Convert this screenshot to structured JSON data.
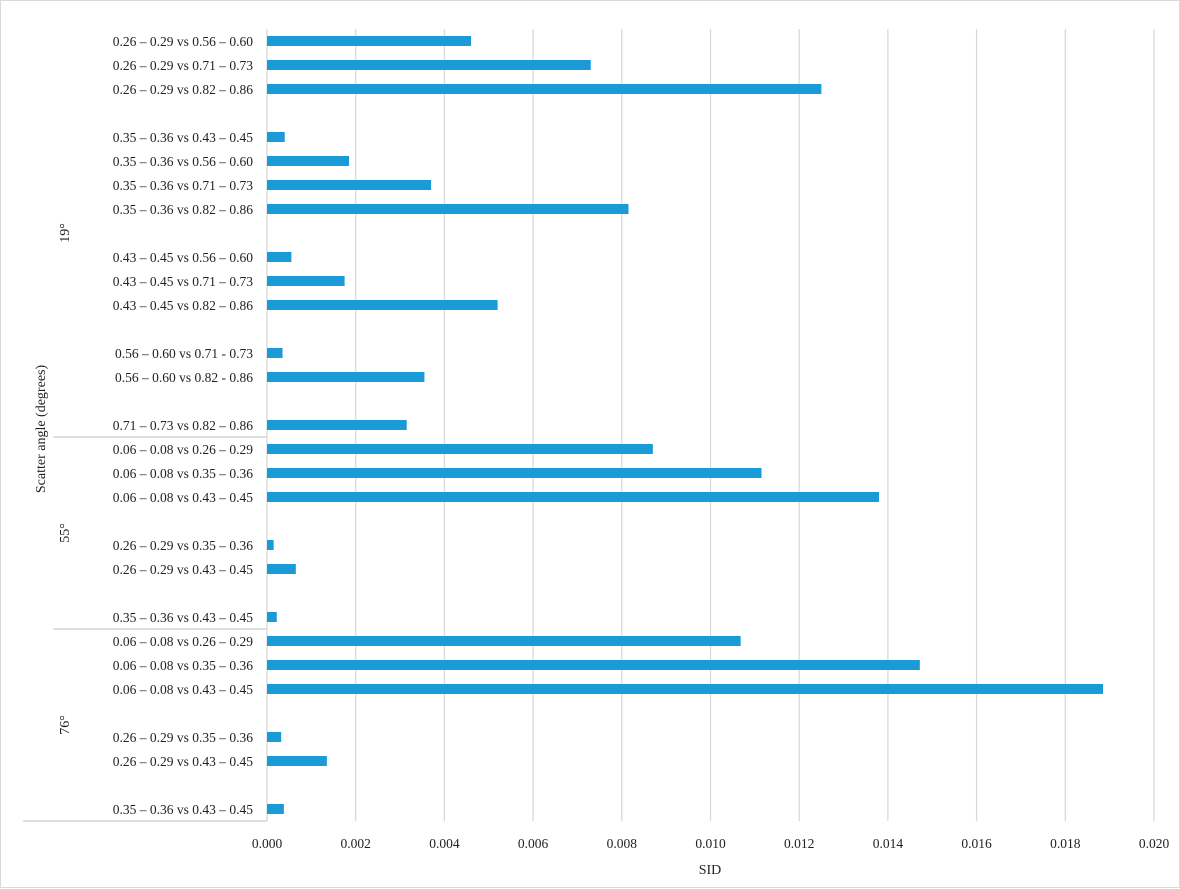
{
  "chart_data": {
    "type": "bar",
    "orientation": "horizontal",
    "title": "",
    "xlabel": "SID",
    "ylabel": "Scatter angle (degrees)",
    "xlim": [
      0,
      0.02
    ],
    "x_ticks": [
      "0.000",
      "0.002",
      "0.004",
      "0.006",
      "0.008",
      "0.010",
      "0.012",
      "0.014",
      "0.016",
      "0.018",
      "0.020"
    ],
    "grid": "vertical",
    "legend": "none",
    "bar_color": "#1a9ad6",
    "groups": [
      {
        "name": "19°",
        "rows": [
          {
            "label": "0.26 – 0.29 vs 0.56 – 0.60",
            "value": 0.0046
          },
          {
            "label": "0.26 – 0.29 vs 0.71 – 0.73",
            "value": 0.0073
          },
          {
            "label": "0.26 – 0.29 vs 0.82 – 0.86",
            "value": 0.0125
          },
          {
            "label": "",
            "value": null
          },
          {
            "label": "0.35 – 0.36 vs 0.43 – 0.45",
            "value": 0.0004
          },
          {
            "label": "0.35 – 0.36 vs 0.56 – 0.60",
            "value": 0.00185
          },
          {
            "label": "0.35 – 0.36 vs 0.71 – 0.73",
            "value": 0.0037
          },
          {
            "label": "0.35 – 0.36 vs 0.82 – 0.86",
            "value": 0.00815
          },
          {
            "label": "",
            "value": null
          },
          {
            "label": "0.43 – 0.45 vs 0.56 – 0.60",
            "value": 0.00055
          },
          {
            "label": "0.43 – 0.45 vs 0.71 – 0.73",
            "value": 0.00175
          },
          {
            "label": "0.43 – 0.45 vs 0.82 – 0.86",
            "value": 0.0052
          },
          {
            "label": "",
            "value": null
          },
          {
            "label": "0.56 – 0.60 vs 0.71 - 0.73",
            "value": 0.00035
          },
          {
            "label": "0.56 – 0.60 vs 0.82 - 0.86",
            "value": 0.00355
          },
          {
            "label": "",
            "value": null
          },
          {
            "label": "0.71 – 0.73 vs 0.82 – 0.86",
            "value": 0.00315
          }
        ]
      },
      {
        "name": "55°",
        "rows": [
          {
            "label": "0.06 – 0.08 vs 0.26 – 0.29",
            "value": 0.0087
          },
          {
            "label": "0.06 – 0.08 vs 0.35 – 0.36",
            "value": 0.01115
          },
          {
            "label": "0.06 – 0.08 vs 0.43 – 0.45",
            "value": 0.0138
          },
          {
            "label": "",
            "value": null
          },
          {
            "label": "0.26 – 0.29 vs 0.35 – 0.36",
            "value": 0.00015
          },
          {
            "label": "0.26 – 0.29 vs 0.43 – 0.45",
            "value": 0.00065
          },
          {
            "label": "",
            "value": null
          },
          {
            "label": "0.35 – 0.36 vs 0.43 – 0.45",
            "value": 0.00022
          }
        ]
      },
      {
        "name": "76°",
        "rows": [
          {
            "label": "0.06 – 0.08 vs 0.26 – 0.29",
            "value": 0.01068
          },
          {
            "label": "0.06 – 0.08 vs 0.35 – 0.36",
            "value": 0.01472
          },
          {
            "label": "0.06 – 0.08 vs 0.43 – 0.45",
            "value": 0.01885
          },
          {
            "label": "",
            "value": null
          },
          {
            "label": "0.26 – 0.29 vs 0.35 – 0.36",
            "value": 0.00032
          },
          {
            "label": "0.26 – 0.29 vs 0.43 – 0.45",
            "value": 0.00135
          },
          {
            "label": "",
            "value": null
          },
          {
            "label": "0.35 – 0.36 vs 0.43 – 0.45",
            "value": 0.00038
          }
        ]
      }
    ]
  }
}
